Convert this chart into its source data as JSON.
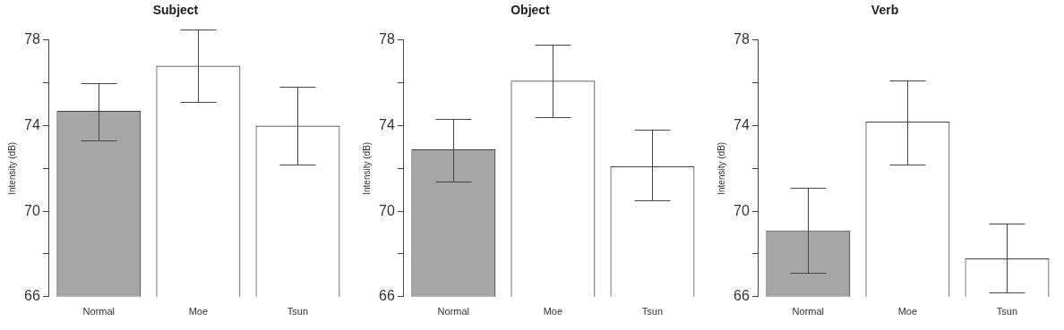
{
  "chart_data": [
    {
      "type": "bar",
      "title": "Subject",
      "ylabel": "Intensity (dB)",
      "categories": [
        "Normal",
        "Moe",
        "Tsun"
      ],
      "values": [
        74.7,
        76.8,
        74.0
      ],
      "colors": [
        "#a6a6a6",
        "#ffffff",
        "#ffffff"
      ],
      "errors": [
        [
          73.3,
          76.0
        ],
        [
          75.1,
          78.5
        ],
        [
          72.2,
          75.8
        ]
      ],
      "ylim": [
        66,
        78
      ],
      "yticks": [
        66,
        {
          "value": 68,
          "label": null
        },
        70,
        {
          "value": 72,
          "label": null
        },
        74,
        {
          "value": 76,
          "label": null
        },
        78
      ],
      "grid": false
    },
    {
      "type": "bar",
      "title": "Object",
      "ylabel": "Intensity (dB)",
      "categories": [
        "Normal",
        "Moe",
        "Tsun"
      ],
      "values": [
        72.9,
        76.1,
        72.1
      ],
      "colors": [
        "#a6a6a6",
        "#ffffff",
        "#ffffff"
      ],
      "errors": [
        [
          71.4,
          74.3
        ],
        [
          74.4,
          77.8
        ],
        [
          70.5,
          73.8
        ]
      ],
      "ylim": [
        66,
        78
      ],
      "yticks": [
        66,
        {
          "value": 68,
          "label": null
        },
        70,
        {
          "value": 72,
          "label": null
        },
        74,
        {
          "value": 76,
          "label": null
        },
        78
      ],
      "grid": false
    },
    {
      "type": "bar",
      "title": "Verb",
      "ylabel": "Intensity (dB)",
      "categories": [
        "Normal",
        "Moe",
        "Tsun"
      ],
      "values": [
        69.1,
        74.2,
        67.8
      ],
      "colors": [
        "#a6a6a6",
        "#ffffff",
        "#ffffff"
      ],
      "errors": [
        [
          67.1,
          71.1
        ],
        [
          72.2,
          76.1
        ],
        [
          66.2,
          69.4
        ]
      ],
      "ylim": [
        66,
        78
      ],
      "yticks": [
        66,
        {
          "value": 68,
          "label": null
        },
        70,
        {
          "value": 72,
          "label": null
        },
        74,
        {
          "value": 76,
          "label": null
        },
        78
      ],
      "grid": false
    }
  ]
}
